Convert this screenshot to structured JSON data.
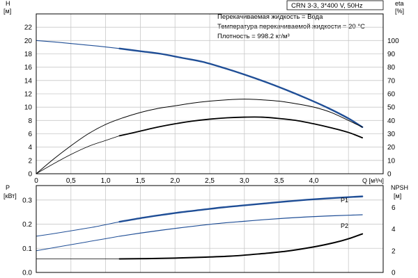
{
  "header": {
    "model": "CRN 3-3, 3*400 V, 50Hz",
    "info_lines": [
      "Перекачиваемая жидкость = Вода",
      "Температура перекачиваемой жидкости = 20 °C",
      "Плотность = 998.2 кг/м³"
    ]
  },
  "colors": {
    "blue": "#1f4e96",
    "black": "#000000",
    "grid": "#c8c8c8"
  },
  "chart_data": [
    {
      "type": "line",
      "panel": "top",
      "title": "",
      "xlabel": "Q [м³/ч]",
      "xlabel_parts": [
        "Q",
        "[м³/ч]"
      ],
      "ylabel": "H [м]",
      "ylabel_parts": [
        "H",
        "[м]"
      ],
      "y2label": "eta [%]",
      "y2label_parts": [
        "eta",
        "[%]"
      ],
      "xlim": [
        0,
        5
      ],
      "ylim": [
        0,
        24
      ],
      "y2lim": [
        0,
        120
      ],
      "xticks": [
        "0",
        "0,5",
        "1,0",
        "1,5",
        "2,0",
        "2,5",
        "3,0",
        "3,5",
        "4,0"
      ],
      "xtick_values": [
        0,
        0.5,
        1.0,
        1.5,
        2.0,
        2.5,
        3.0,
        3.5,
        4.0
      ],
      "yticks": [
        0,
        2,
        4,
        6,
        8,
        10,
        12,
        14,
        16,
        18,
        20,
        22
      ],
      "y2ticks": [
        0,
        10,
        20,
        30,
        40,
        50,
        60,
        70,
        80,
        90,
        100
      ],
      "grid": true,
      "series": [
        {
          "role": "head-thin",
          "color": "blue",
          "width": 1.1,
          "axis": "left",
          "x": [
            0,
            0.3,
            0.6,
            0.9,
            1.2
          ],
          "y": [
            20.0,
            19.75,
            19.45,
            19.15,
            18.8
          ]
        },
        {
          "role": "head",
          "color": "blue",
          "width": 2.4,
          "axis": "left",
          "x": [
            1.2,
            1.5,
            1.8,
            2.1,
            2.4,
            2.7,
            3.0,
            3.3,
            3.6,
            3.9,
            4.2,
            4.5,
            4.7
          ],
          "y": [
            18.8,
            18.4,
            18.0,
            17.4,
            16.8,
            15.9,
            14.9,
            13.8,
            12.6,
            11.3,
            9.9,
            8.3,
            7.0
          ]
        },
        {
          "role": "eta-total",
          "color": "black",
          "width": 1.0,
          "axis": "right",
          "x": [
            0,
            0.25,
            0.5,
            0.75,
            1.0,
            1.25,
            1.5,
            1.75,
            2.0,
            2.25,
            2.5,
            2.75,
            3.0,
            3.25,
            3.5,
            3.75,
            4.0,
            4.25,
            4.5,
            4.7
          ],
          "y": [
            0,
            11,
            21,
            30,
            37,
            42,
            46,
            49,
            51,
            53,
            54.5,
            55.5,
            56,
            55.5,
            54.5,
            52.5,
            50,
            46,
            40,
            35
          ]
        },
        {
          "role": "eta-thin",
          "color": "black",
          "width": 0.8,
          "axis": "right",
          "x": [
            0,
            0.25,
            0.5,
            0.75,
            1.0,
            1.2
          ],
          "y": [
            0,
            7.5,
            14.5,
            20.5,
            25,
            28.5
          ]
        },
        {
          "role": "eta",
          "color": "black",
          "width": 1.8,
          "axis": "right",
          "x": [
            1.2,
            1.5,
            1.75,
            2.0,
            2.25,
            2.5,
            2.75,
            3.0,
            3.25,
            3.5,
            3.75,
            4.0,
            4.25,
            4.5,
            4.7
          ],
          "y": [
            28.5,
            32,
            35,
            37.5,
            39.5,
            41,
            42,
            42.5,
            42.5,
            41.5,
            40,
            37.5,
            34.5,
            31,
            27
          ]
        }
      ]
    },
    {
      "type": "line",
      "panel": "bottom",
      "title": "",
      "ylabel": "P [кВт]",
      "ylabel_parts": [
        "P",
        "[кВт]"
      ],
      "y2label": "NPSH [м]",
      "y2label_parts": [
        "NPSH",
        "[м]"
      ],
      "xlim": [
        0,
        5
      ],
      "ylim": [
        0,
        0.36
      ],
      "y2lim": [
        0,
        8
      ],
      "yticks": [
        "0.0",
        "0.1",
        "0.2",
        "0.3"
      ],
      "ytick_values": [
        0.0,
        0.1,
        0.2,
        0.3
      ],
      "y2ticks": [
        0,
        2,
        4,
        6
      ],
      "grid": true,
      "series_labels": [
        "P1",
        "P2"
      ],
      "series": [
        {
          "role": "p1-thin",
          "color": "blue",
          "width": 1.0,
          "axis": "left",
          "x": [
            0,
            0.3,
            0.6,
            0.9,
            1.2
          ],
          "y": [
            0.15,
            0.163,
            0.177,
            0.192,
            0.21
          ]
        },
        {
          "role": "p1",
          "name": "P1",
          "color": "blue",
          "width": 2.4,
          "axis": "left",
          "x": [
            1.2,
            1.5,
            1.8,
            2.1,
            2.4,
            2.7,
            3.0,
            3.3,
            3.6,
            3.9,
            4.2,
            4.5,
            4.7
          ],
          "y": [
            0.21,
            0.225,
            0.238,
            0.25,
            0.26,
            0.27,
            0.278,
            0.286,
            0.294,
            0.301,
            0.307,
            0.312,
            0.315
          ]
        },
        {
          "role": "p2-thin",
          "color": "blue",
          "width": 1.0,
          "axis": "left",
          "x": [
            0,
            0.3,
            0.6,
            0.9,
            1.2
          ],
          "y": [
            0.09,
            0.105,
            0.12,
            0.135,
            0.15
          ]
        },
        {
          "role": "p2",
          "name": "P2",
          "color": "blue",
          "width": 1.2,
          "axis": "left",
          "x": [
            1.2,
            1.5,
            1.8,
            2.1,
            2.4,
            2.7,
            3.0,
            3.3,
            3.6,
            3.9,
            4.2,
            4.5,
            4.7
          ],
          "y": [
            0.15,
            0.163,
            0.175,
            0.186,
            0.196,
            0.205,
            0.212,
            0.219,
            0.225,
            0.23,
            0.234,
            0.237,
            0.239
          ]
        },
        {
          "role": "npsh-thin",
          "color": "black",
          "width": 0.8,
          "axis": "right",
          "x": [
            0,
            0.6,
            1.2
          ],
          "y": [
            1.25,
            1.25,
            1.25
          ]
        },
        {
          "role": "npsh",
          "color": "black",
          "width": 2.0,
          "axis": "right",
          "x": [
            1.2,
            1.6,
            2.0,
            2.4,
            2.8,
            3.2,
            3.6,
            4.0,
            4.3,
            4.5,
            4.7
          ],
          "y": [
            1.25,
            1.27,
            1.32,
            1.4,
            1.5,
            1.7,
            1.95,
            2.35,
            2.75,
            3.1,
            3.55
          ]
        }
      ]
    }
  ]
}
